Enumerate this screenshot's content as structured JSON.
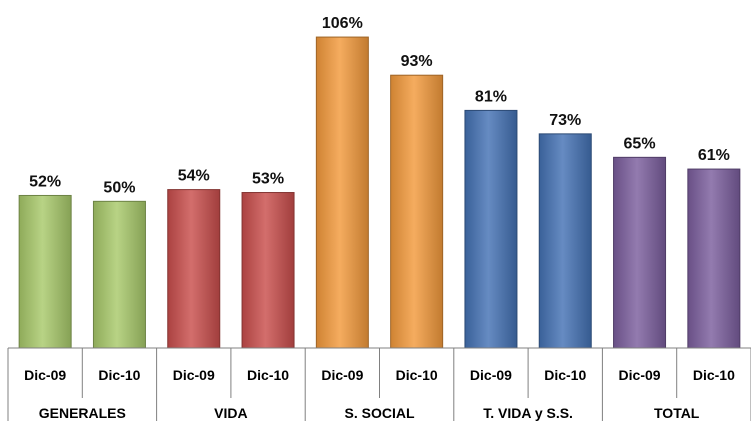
{
  "chart_data": {
    "type": "bar",
    "groups": [
      {
        "label": "GENERALES",
        "color": "#A8C96A",
        "bars": [
          {
            "category": "Dic-09",
            "value": 52,
            "label": "52%"
          },
          {
            "category": "Dic-10",
            "value": 50,
            "label": "50%"
          }
        ]
      },
      {
        "label": "VIDA",
        "color": "#C94E4C",
        "bars": [
          {
            "category": "Dic-09",
            "value": 54,
            "label": "54%"
          },
          {
            "category": "Dic-10",
            "value": 53,
            "label": "53%"
          }
        ]
      },
      {
        "label": "S. SOCIAL",
        "color": "#F39A3C",
        "bars": [
          {
            "category": "Dic-09",
            "value": 106,
            "label": "106%"
          },
          {
            "category": "Dic-10",
            "value": 93,
            "label": "93%"
          }
        ]
      },
      {
        "label": "T. VIDA y S.S.",
        "color": "#4472B4",
        "bars": [
          {
            "category": "Dic-09",
            "value": 81,
            "label": "81%"
          },
          {
            "category": "Dic-10",
            "value": 73,
            "label": "73%"
          }
        ]
      },
      {
        "label": "TOTAL",
        "color": "#7B5E9E",
        "bars": [
          {
            "category": "Dic-09",
            "value": 65,
            "label": "65%"
          },
          {
            "category": "Dic-10",
            "value": 61,
            "label": "61%"
          }
        ]
      }
    ],
    "ylim": [
      0,
      112
    ],
    "grid": false,
    "legend": "none"
  }
}
